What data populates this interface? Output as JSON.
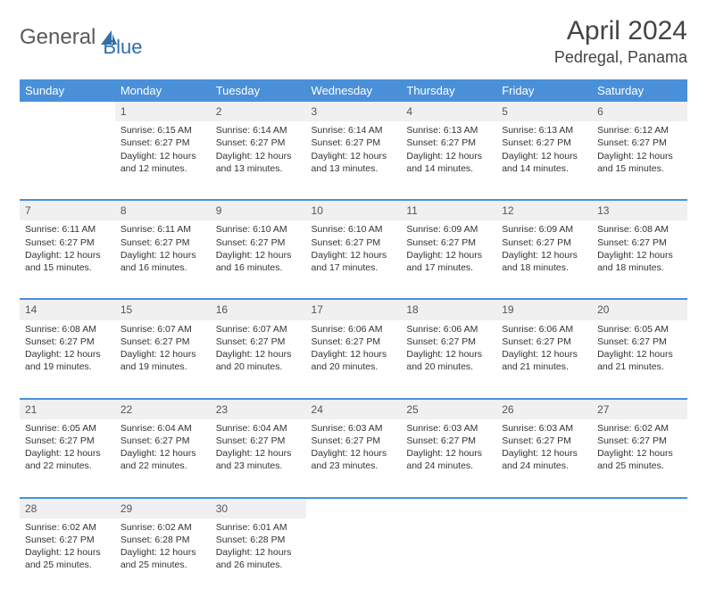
{
  "brand": {
    "part1": "General",
    "part2": "Blue"
  },
  "title": {
    "month": "April 2024",
    "location": "Pedregal, Panama"
  },
  "colors": {
    "header_bg": "#4a90d9",
    "header_text": "#ffffff",
    "daynum_bg": "#f0f0f0",
    "row_divider": "#4a90d9",
    "text": "#333333",
    "logo_gray": "#5a5a5a",
    "logo_blue": "#2f6fa8"
  },
  "typography": {
    "title_fontsize": 30,
    "location_fontsize": 18,
    "weekday_fontsize": 13,
    "daynum_fontsize": 12,
    "cell_fontsize": 10.5
  },
  "weekdays": [
    "Sunday",
    "Monday",
    "Tuesday",
    "Wednesday",
    "Thursday",
    "Friday",
    "Saturday"
  ],
  "weeks": [
    [
      null,
      {
        "n": "1",
        "sr": "Sunrise: 6:15 AM",
        "ss": "Sunset: 6:27 PM",
        "d1": "Daylight: 12 hours",
        "d2": "and 12 minutes."
      },
      {
        "n": "2",
        "sr": "Sunrise: 6:14 AM",
        "ss": "Sunset: 6:27 PM",
        "d1": "Daylight: 12 hours",
        "d2": "and 13 minutes."
      },
      {
        "n": "3",
        "sr": "Sunrise: 6:14 AM",
        "ss": "Sunset: 6:27 PM",
        "d1": "Daylight: 12 hours",
        "d2": "and 13 minutes."
      },
      {
        "n": "4",
        "sr": "Sunrise: 6:13 AM",
        "ss": "Sunset: 6:27 PM",
        "d1": "Daylight: 12 hours",
        "d2": "and 14 minutes."
      },
      {
        "n": "5",
        "sr": "Sunrise: 6:13 AM",
        "ss": "Sunset: 6:27 PM",
        "d1": "Daylight: 12 hours",
        "d2": "and 14 minutes."
      },
      {
        "n": "6",
        "sr": "Sunrise: 6:12 AM",
        "ss": "Sunset: 6:27 PM",
        "d1": "Daylight: 12 hours",
        "d2": "and 15 minutes."
      }
    ],
    [
      {
        "n": "7",
        "sr": "Sunrise: 6:11 AM",
        "ss": "Sunset: 6:27 PM",
        "d1": "Daylight: 12 hours",
        "d2": "and 15 minutes."
      },
      {
        "n": "8",
        "sr": "Sunrise: 6:11 AM",
        "ss": "Sunset: 6:27 PM",
        "d1": "Daylight: 12 hours",
        "d2": "and 16 minutes."
      },
      {
        "n": "9",
        "sr": "Sunrise: 6:10 AM",
        "ss": "Sunset: 6:27 PM",
        "d1": "Daylight: 12 hours",
        "d2": "and 16 minutes."
      },
      {
        "n": "10",
        "sr": "Sunrise: 6:10 AM",
        "ss": "Sunset: 6:27 PM",
        "d1": "Daylight: 12 hours",
        "d2": "and 17 minutes."
      },
      {
        "n": "11",
        "sr": "Sunrise: 6:09 AM",
        "ss": "Sunset: 6:27 PM",
        "d1": "Daylight: 12 hours",
        "d2": "and 17 minutes."
      },
      {
        "n": "12",
        "sr": "Sunrise: 6:09 AM",
        "ss": "Sunset: 6:27 PM",
        "d1": "Daylight: 12 hours",
        "d2": "and 18 minutes."
      },
      {
        "n": "13",
        "sr": "Sunrise: 6:08 AM",
        "ss": "Sunset: 6:27 PM",
        "d1": "Daylight: 12 hours",
        "d2": "and 18 minutes."
      }
    ],
    [
      {
        "n": "14",
        "sr": "Sunrise: 6:08 AM",
        "ss": "Sunset: 6:27 PM",
        "d1": "Daylight: 12 hours",
        "d2": "and 19 minutes."
      },
      {
        "n": "15",
        "sr": "Sunrise: 6:07 AM",
        "ss": "Sunset: 6:27 PM",
        "d1": "Daylight: 12 hours",
        "d2": "and 19 minutes."
      },
      {
        "n": "16",
        "sr": "Sunrise: 6:07 AM",
        "ss": "Sunset: 6:27 PM",
        "d1": "Daylight: 12 hours",
        "d2": "and 20 minutes."
      },
      {
        "n": "17",
        "sr": "Sunrise: 6:06 AM",
        "ss": "Sunset: 6:27 PM",
        "d1": "Daylight: 12 hours",
        "d2": "and 20 minutes."
      },
      {
        "n": "18",
        "sr": "Sunrise: 6:06 AM",
        "ss": "Sunset: 6:27 PM",
        "d1": "Daylight: 12 hours",
        "d2": "and 20 minutes."
      },
      {
        "n": "19",
        "sr": "Sunrise: 6:06 AM",
        "ss": "Sunset: 6:27 PM",
        "d1": "Daylight: 12 hours",
        "d2": "and 21 minutes."
      },
      {
        "n": "20",
        "sr": "Sunrise: 6:05 AM",
        "ss": "Sunset: 6:27 PM",
        "d1": "Daylight: 12 hours",
        "d2": "and 21 minutes."
      }
    ],
    [
      {
        "n": "21",
        "sr": "Sunrise: 6:05 AM",
        "ss": "Sunset: 6:27 PM",
        "d1": "Daylight: 12 hours",
        "d2": "and 22 minutes."
      },
      {
        "n": "22",
        "sr": "Sunrise: 6:04 AM",
        "ss": "Sunset: 6:27 PM",
        "d1": "Daylight: 12 hours",
        "d2": "and 22 minutes."
      },
      {
        "n": "23",
        "sr": "Sunrise: 6:04 AM",
        "ss": "Sunset: 6:27 PM",
        "d1": "Daylight: 12 hours",
        "d2": "and 23 minutes."
      },
      {
        "n": "24",
        "sr": "Sunrise: 6:03 AM",
        "ss": "Sunset: 6:27 PM",
        "d1": "Daylight: 12 hours",
        "d2": "and 23 minutes."
      },
      {
        "n": "25",
        "sr": "Sunrise: 6:03 AM",
        "ss": "Sunset: 6:27 PM",
        "d1": "Daylight: 12 hours",
        "d2": "and 24 minutes."
      },
      {
        "n": "26",
        "sr": "Sunrise: 6:03 AM",
        "ss": "Sunset: 6:27 PM",
        "d1": "Daylight: 12 hours",
        "d2": "and 24 minutes."
      },
      {
        "n": "27",
        "sr": "Sunrise: 6:02 AM",
        "ss": "Sunset: 6:27 PM",
        "d1": "Daylight: 12 hours",
        "d2": "and 25 minutes."
      }
    ],
    [
      {
        "n": "28",
        "sr": "Sunrise: 6:02 AM",
        "ss": "Sunset: 6:27 PM",
        "d1": "Daylight: 12 hours",
        "d2": "and 25 minutes."
      },
      {
        "n": "29",
        "sr": "Sunrise: 6:02 AM",
        "ss": "Sunset: 6:28 PM",
        "d1": "Daylight: 12 hours",
        "d2": "and 25 minutes."
      },
      {
        "n": "30",
        "sr": "Sunrise: 6:01 AM",
        "ss": "Sunset: 6:28 PM",
        "d1": "Daylight: 12 hours",
        "d2": "and 26 minutes."
      },
      null,
      null,
      null,
      null
    ]
  ]
}
